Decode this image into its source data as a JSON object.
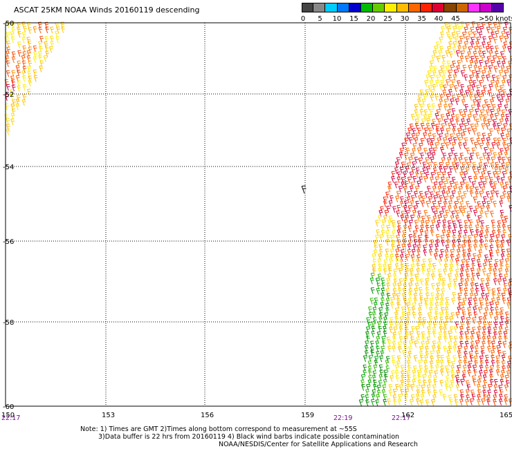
{
  "title": "ASCAT 25KM NOAA Winds 20160119 descending",
  "legend": {
    "colors": [
      "#444444",
      "#888888",
      "#00ccff",
      "#0077ff",
      "#0000cc",
      "#00bb00",
      "#66cc00",
      "#ffee00",
      "#ffbb00",
      "#ff6600",
      "#ff2200",
      "#dd0033",
      "#884400",
      "#cc6600",
      "#ff33ff",
      "#cc00cc",
      "#5500aa"
    ],
    "labels": [
      {
        "text": "0",
        "index": 0
      },
      {
        "text": "5",
        "index": 1
      },
      {
        "text": "10",
        "index": 2
      },
      {
        "text": "15",
        "index": 3
      },
      {
        "text": "20",
        "index": 4
      },
      {
        "text": "25",
        "index": 5
      },
      {
        "text": "30",
        "index": 6
      },
      {
        "text": "35",
        "index": 7
      },
      {
        "text": "40",
        "index": 8
      },
      {
        "text": "45",
        "index": 9
      },
      {
        "text": ">50 knots",
        "index": 10
      }
    ]
  },
  "axes": {
    "lon_ticks": [
      "150",
      "153",
      "156",
      "159",
      "162",
      "165"
    ],
    "lat_ticks": [
      "-50",
      "-52",
      "-54",
      "-56",
      "-58",
      "-60"
    ]
  },
  "times": [
    {
      "text": "22:17",
      "pos": "left"
    },
    {
      "text": "22:19",
      "pos": "mid"
    },
    {
      "text": "22:17",
      "pos": "right"
    }
  ],
  "notes": [
    "Note: 1) Times are GMT 2)Times along bottom correspond to measurement at ~55S",
    "3)Data buffer is 22 hrs from 20160119 4) Black wind barbs indicate possible contamination",
    "NOAA/NESDIS/Center for Satellite Applications and Research"
  ]
}
